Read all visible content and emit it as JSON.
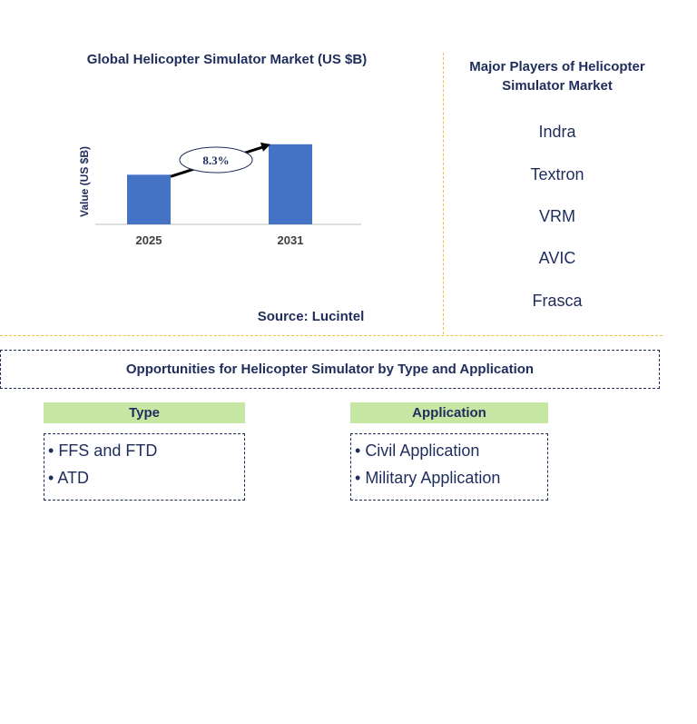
{
  "chart_data": {
    "type": "bar",
    "title": "Global Helicopter Simulator Market (US $B)",
    "ylabel": "Value (US $B)",
    "categories": [
      "2025",
      "2031"
    ],
    "values": [
      0.62,
      1.0
    ],
    "ylim": [
      0,
      1.1
    ],
    "grid": false,
    "bar_color": "#4472c4",
    "annotation": {
      "label": "8.3%",
      "type": "cagr-arrow",
      "from": "2025",
      "to": "2031"
    }
  },
  "source": "Source: Lucintel",
  "players": {
    "title": "Major Players of Helicopter Simulator Market",
    "items": [
      "Indra",
      "Textron",
      "VRM",
      "AVIC",
      "Frasca"
    ]
  },
  "opportunities": {
    "title": "Opportunities for Helicopter Simulator by Type and Application",
    "segments": [
      {
        "heading": "Type",
        "items": [
          "FFS and FTD",
          "ATD"
        ]
      },
      {
        "heading": "Application",
        "items": [
          "Civil Application",
          "Military Application"
        ]
      }
    ]
  },
  "colors": {
    "text": "#1f2d5c",
    "accent_green": "#c6e6a3",
    "divider": "#f0c040"
  }
}
